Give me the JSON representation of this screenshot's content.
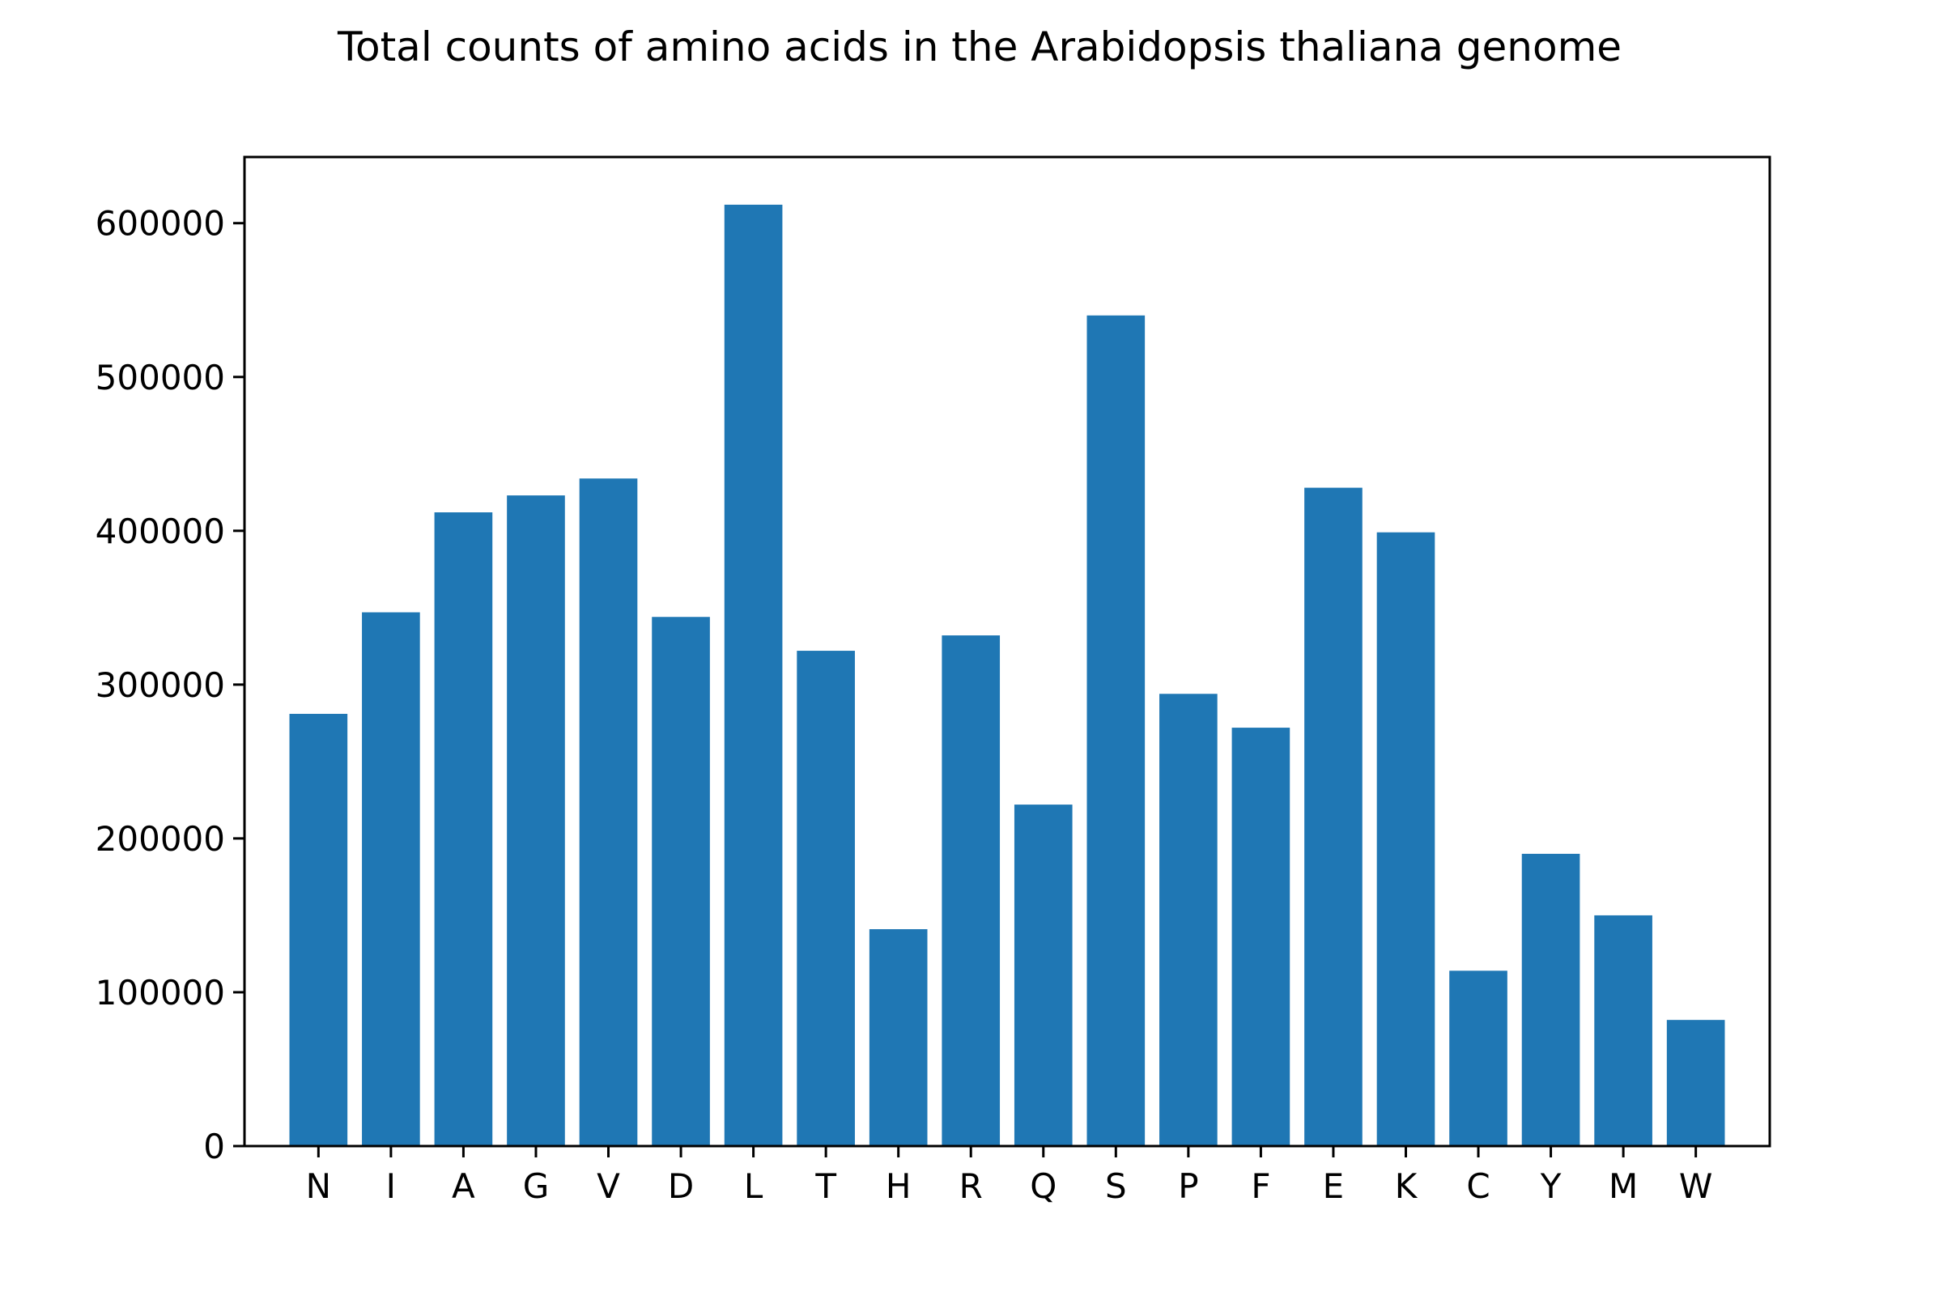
{
  "chart_data": {
    "type": "bar",
    "title": "Total counts of amino acids in the Arabidopsis thaliana genome",
    "xlabel": "",
    "ylabel": "",
    "categories": [
      "N",
      "I",
      "A",
      "G",
      "V",
      "D",
      "L",
      "T",
      "H",
      "R",
      "Q",
      "S",
      "P",
      "F",
      "E",
      "K",
      "C",
      "Y",
      "M",
      "W"
    ],
    "values": [
      281000,
      347000,
      412000,
      423000,
      434000,
      344000,
      612000,
      322000,
      141000,
      332000,
      222000,
      540000,
      294000,
      272000,
      428000,
      399000,
      114000,
      190000,
      150000,
      82000
    ],
    "ylim": [
      0,
      643000
    ],
    "yticks": [
      0,
      100000,
      200000,
      300000,
      400000,
      500000,
      600000
    ],
    "ytick_labels": [
      "0",
      "100000",
      "200000",
      "300000",
      "400000",
      "500000",
      "600000"
    ],
    "grid": false,
    "bar_color": "#1f77b4"
  }
}
